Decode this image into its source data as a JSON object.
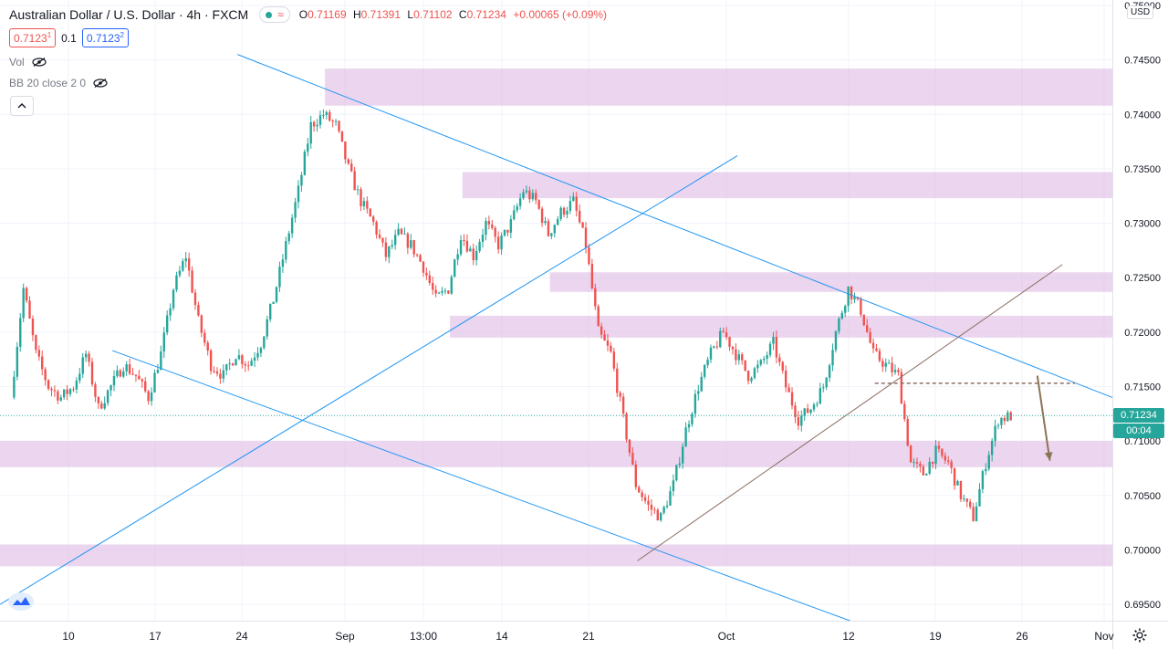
{
  "header": {
    "title": "Australian Dollar / U.S. Dollar · 4h · FXCM",
    "open_label": "O",
    "open": "0.71169",
    "high_label": "H",
    "high": "0.71391",
    "low_label": "L",
    "low": "0.71102",
    "close_label": "C",
    "close": "0.71234",
    "change": "+0.00065 (+0.09%)",
    "wave_icon": "≈"
  },
  "prices": {
    "sell": "0.7123",
    "sell_sup": "1",
    "spread": "0.1",
    "buy": "0.7123",
    "buy_sup": "2"
  },
  "indicators": [
    {
      "label": "Vol"
    },
    {
      "label": "BB 20 close 2 0"
    }
  ],
  "axis": {
    "currency": "USD",
    "price_labels": [
      "0.75000",
      "0.74500",
      "0.74000",
      "0.73500",
      "0.73000",
      "0.72500",
      "0.72000",
      "0.71500",
      "0.71000",
      "0.70500",
      "0.70000",
      "0.69500"
    ],
    "current_price": "0.71234",
    "countdown": "00:04",
    "time_labels": [
      "10",
      "17",
      "24",
      "Sep",
      "13:00",
      "14",
      "21",
      "Oct",
      "12",
      "19",
      "26",
      "Nov"
    ]
  },
  "colors": {
    "up": "#26a69a",
    "down": "#ef5350",
    "zone": "#e1bee7",
    "trendline": "#2196f3",
    "channel": "#8d6e63",
    "arrow": "#8b7355",
    "grid": "#f0f3fa",
    "current": "#26a69a",
    "countdown": "#26a69a"
  },
  "icons": {
    "visibility": "eye-off-icon",
    "collapse": "chevron-up-icon",
    "settings": "gear-icon",
    "logo": "tradingview-logo-icon"
  },
  "chart_data": {
    "type": "candlestick",
    "symbol": "AUDUSD",
    "timeframe": "4h",
    "ylim": [
      0.6935,
      0.7505
    ],
    "zones": [
      {
        "from": "Aug 30",
        "to": "end",
        "low": 0.7408,
        "high": 0.7442
      },
      {
        "from": "Sep 10",
        "to": "end",
        "low": 0.7323,
        "high": 0.7347
      },
      {
        "from": "Sep 17",
        "to": "end",
        "low": 0.7237,
        "high": 0.7255
      },
      {
        "from": "Sep 9",
        "to": "end",
        "low": 0.7195,
        "high": 0.7215
      },
      {
        "from": "start",
        "to": "end",
        "low": 0.7076,
        "high": 0.71
      },
      {
        "from": "start",
        "to": "end",
        "low": 0.6985,
        "high": 0.7005
      }
    ],
    "lines": [
      {
        "kind": "trend",
        "x1": "Aug 23",
        "y1": 0.7455,
        "x2": "end",
        "y2": 0.714
      },
      {
        "kind": "trend",
        "x1": "start",
        "y1": 0.695,
        "x2": "Oct 2",
        "y2": 0.7362
      },
      {
        "kind": "trend",
        "x1": "Aug 13",
        "y1": 0.7183,
        "x2": "Oct 11",
        "y2": 0.6935
      },
      {
        "kind": "channel",
        "x1": "Sep 24",
        "y1": 0.699,
        "x2": "Oct 28",
        "y2": 0.7262
      },
      {
        "kind": "level",
        "x1": "Oct 13",
        "x2": "Oct 29",
        "y": 0.7153
      },
      {
        "kind": "arrow",
        "x1": "Oct 26",
        "y1": 0.716,
        "x2": "Oct 27",
        "y2": 0.7082
      }
    ],
    "path": [
      [
        "Aug 5",
        0.714
      ],
      [
        "Aug 6",
        0.724
      ],
      [
        "Aug 7",
        0.718
      ],
      [
        "Aug 8",
        0.715
      ],
      [
        "Aug 9",
        0.714
      ],
      [
        "Aug 10",
        0.715
      ],
      [
        "Aug 11",
        0.718
      ],
      [
        "Aug 12",
        0.713
      ],
      [
        "Aug 13",
        0.715
      ],
      [
        "Aug 14",
        0.717
      ],
      [
        "Aug 15",
        0.716
      ],
      [
        "Aug 16",
        0.714
      ],
      [
        "Aug 17",
        0.718
      ],
      [
        "Aug 18",
        0.724
      ],
      [
        "Aug 19",
        0.727
      ],
      [
        "Aug 20",
        0.721
      ],
      [
        "Aug 21",
        0.717
      ],
      [
        "Aug 22",
        0.716
      ],
      [
        "Aug 23",
        0.718
      ],
      [
        "Aug 24",
        0.717
      ],
      [
        "Aug 25",
        0.719
      ],
      [
        "Aug 26",
        0.723
      ],
      [
        "Aug 27",
        0.728
      ],
      [
        "Aug 28",
        0.733
      ],
      [
        "Aug 29",
        0.739
      ],
      [
        "Aug 30",
        0.74
      ],
      [
        "Aug 31",
        0.739
      ],
      [
        "Sep 1",
        0.735
      ],
      [
        "Sep 2",
        0.732
      ],
      [
        "Sep 3",
        0.73
      ],
      [
        "Sep 4",
        0.727
      ],
      [
        "Sep 5",
        0.729
      ],
      [
        "Sep 6",
        0.728
      ],
      [
        "Sep 7",
        0.726
      ],
      [
        "Sep 8",
        0.723
      ],
      [
        "Sep 9",
        0.724
      ],
      [
        "Sep 10",
        0.729
      ],
      [
        "Sep 11",
        0.727
      ],
      [
        "Sep 12",
        0.73
      ],
      [
        "Sep 13",
        0.728
      ],
      [
        "Sep 14",
        0.73
      ],
      [
        "Sep 15",
        0.733
      ],
      [
        "Sep 16",
        0.732
      ],
      [
        "Sep 17",
        0.729
      ],
      [
        "Sep 18",
        0.731
      ],
      [
        "Sep 19",
        0.732
      ],
      [
        "Sep 20",
        0.728
      ],
      [
        "Sep 21",
        0.72
      ],
      [
        "Sep 22",
        0.718
      ],
      [
        "Sep 23",
        0.712
      ],
      [
        "Sep 24",
        0.706
      ],
      [
        "Sep 25",
        0.704
      ],
      [
        "Sep 26",
        0.703
      ],
      [
        "Sep 27",
        0.706
      ],
      [
        "Sep 28",
        0.711
      ],
      [
        "Sep 29",
        0.715
      ],
      [
        "Sep 30",
        0.718
      ],
      [
        "Oct 1",
        0.72
      ],
      [
        "Oct 2",
        0.718
      ],
      [
        "Oct 3",
        0.716
      ],
      [
        "Oct 4",
        0.717
      ],
      [
        "Oct 5",
        0.719
      ],
      [
        "Oct 6",
        0.715
      ],
      [
        "Oct 7",
        0.712
      ],
      [
        "Oct 8",
        0.713
      ],
      [
        "Oct 9",
        0.715
      ],
      [
        "Oct 10",
        0.72
      ],
      [
        "Oct 11",
        0.724
      ],
      [
        "Oct 12",
        0.722
      ],
      [
        "Oct 13",
        0.718
      ],
      [
        "Oct 14",
        0.717
      ],
      [
        "Oct 15",
        0.716
      ],
      [
        "Oct 16",
        0.708
      ],
      [
        "Oct 17",
        0.707
      ],
      [
        "Oct 18",
        0.709
      ],
      [
        "Oct 19",
        0.708
      ],
      [
        "Oct 20",
        0.705
      ],
      [
        "Oct 21",
        0.703
      ],
      [
        "Oct 22",
        0.708
      ],
      [
        "Oct 23",
        0.712
      ],
      [
        "Oct 24",
        0.7123
      ]
    ]
  }
}
